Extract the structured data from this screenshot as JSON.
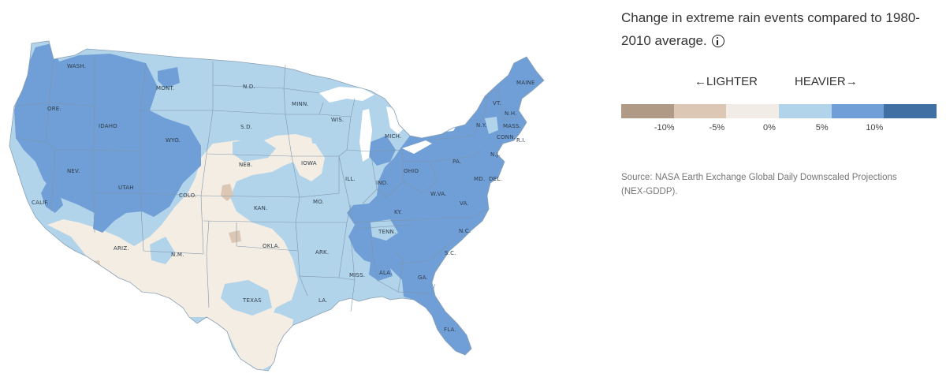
{
  "panel": {
    "title": "Change in extreme rain events compared to 1980-2010 average.",
    "info_icon": "info-icon",
    "lighter_label": "←LIGHTER",
    "heavier_label": "HEAVIER→",
    "legend": {
      "swatches": [
        {
          "color": "#b09a86",
          "range": "below -10%"
        },
        {
          "color": "#dcc7b5",
          "range": "-10% to -5%"
        },
        {
          "color": "#f1ece6",
          "range": "-5% to 0%"
        },
        {
          "color": "#b2d4ea",
          "range": "0% to 5%"
        },
        {
          "color": "#6f9fd6",
          "range": "5% to 10%"
        },
        {
          "color": "#3f6fa3",
          "range": "above 10%"
        }
      ],
      "ticks": [
        "-10%",
        "-5%",
        "0%",
        "5%",
        "10%"
      ]
    },
    "source": "Source: NASA Earth Exchange Global Daily Downscaled Projections (NEX-GDDP)."
  },
  "map": {
    "colors": {
      "lighter": "#f4ede3",
      "slightly_heavier": "#b2d4ea",
      "heavier": "#6f9fd6",
      "lighter_strong": "#dcc7b5",
      "borders": "#7f95aa"
    },
    "state_labels": [
      {
        "id": "wa",
        "text": "WASH."
      },
      {
        "id": "or",
        "text": "ORE."
      },
      {
        "id": "id",
        "text": "IDAHO"
      },
      {
        "id": "mt",
        "text": "MONT."
      },
      {
        "id": "wy",
        "text": "WYO."
      },
      {
        "id": "nd",
        "text": "N.D."
      },
      {
        "id": "sd",
        "text": "S.D."
      },
      {
        "id": "mn",
        "text": "MINN."
      },
      {
        "id": "wi",
        "text": "WIS."
      },
      {
        "id": "mi",
        "text": "MICH."
      },
      {
        "id": "ia",
        "text": "IOWA"
      },
      {
        "id": "ne",
        "text": "NEB."
      },
      {
        "id": "nv",
        "text": "NEV."
      },
      {
        "id": "ut",
        "text": "UTAH"
      },
      {
        "id": "co",
        "text": "COLO."
      },
      {
        "id": "ca",
        "text": "CALIF."
      },
      {
        "id": "ks",
        "text": "KAN."
      },
      {
        "id": "mo",
        "text": "MO."
      },
      {
        "id": "il",
        "text": "ILL."
      },
      {
        "id": "in",
        "text": "IND."
      },
      {
        "id": "oh",
        "text": "OHIO"
      },
      {
        "id": "pa",
        "text": "PA."
      },
      {
        "id": "ny",
        "text": "N.Y."
      },
      {
        "id": "vt",
        "text": "VT."
      },
      {
        "id": "nh",
        "text": "N.H."
      },
      {
        "id": "me",
        "text": "MAINE"
      },
      {
        "id": "ma",
        "text": "MASS."
      },
      {
        "id": "ct",
        "text": "CONN."
      },
      {
        "id": "ri",
        "text": "R.I."
      },
      {
        "id": "nj",
        "text": "N.J."
      },
      {
        "id": "md",
        "text": "MD."
      },
      {
        "id": "de",
        "text": "DEL."
      },
      {
        "id": "wv",
        "text": "W.VA."
      },
      {
        "id": "va",
        "text": "VA."
      },
      {
        "id": "ky",
        "text": "KY."
      },
      {
        "id": "tn",
        "text": "TENN."
      },
      {
        "id": "nc",
        "text": "N.C."
      },
      {
        "id": "sc",
        "text": "S.C."
      },
      {
        "id": "ga",
        "text": "GA."
      },
      {
        "id": "al",
        "text": "ALA."
      },
      {
        "id": "ms",
        "text": "MISS."
      },
      {
        "id": "la",
        "text": "LA."
      },
      {
        "id": "ar",
        "text": "ARK."
      },
      {
        "id": "ok",
        "text": "OKLA."
      },
      {
        "id": "tx",
        "text": "TEXAS"
      },
      {
        "id": "nm",
        "text": "N.M."
      },
      {
        "id": "az",
        "text": "ARIZ."
      },
      {
        "id": "fl",
        "text": "FLA."
      }
    ]
  }
}
